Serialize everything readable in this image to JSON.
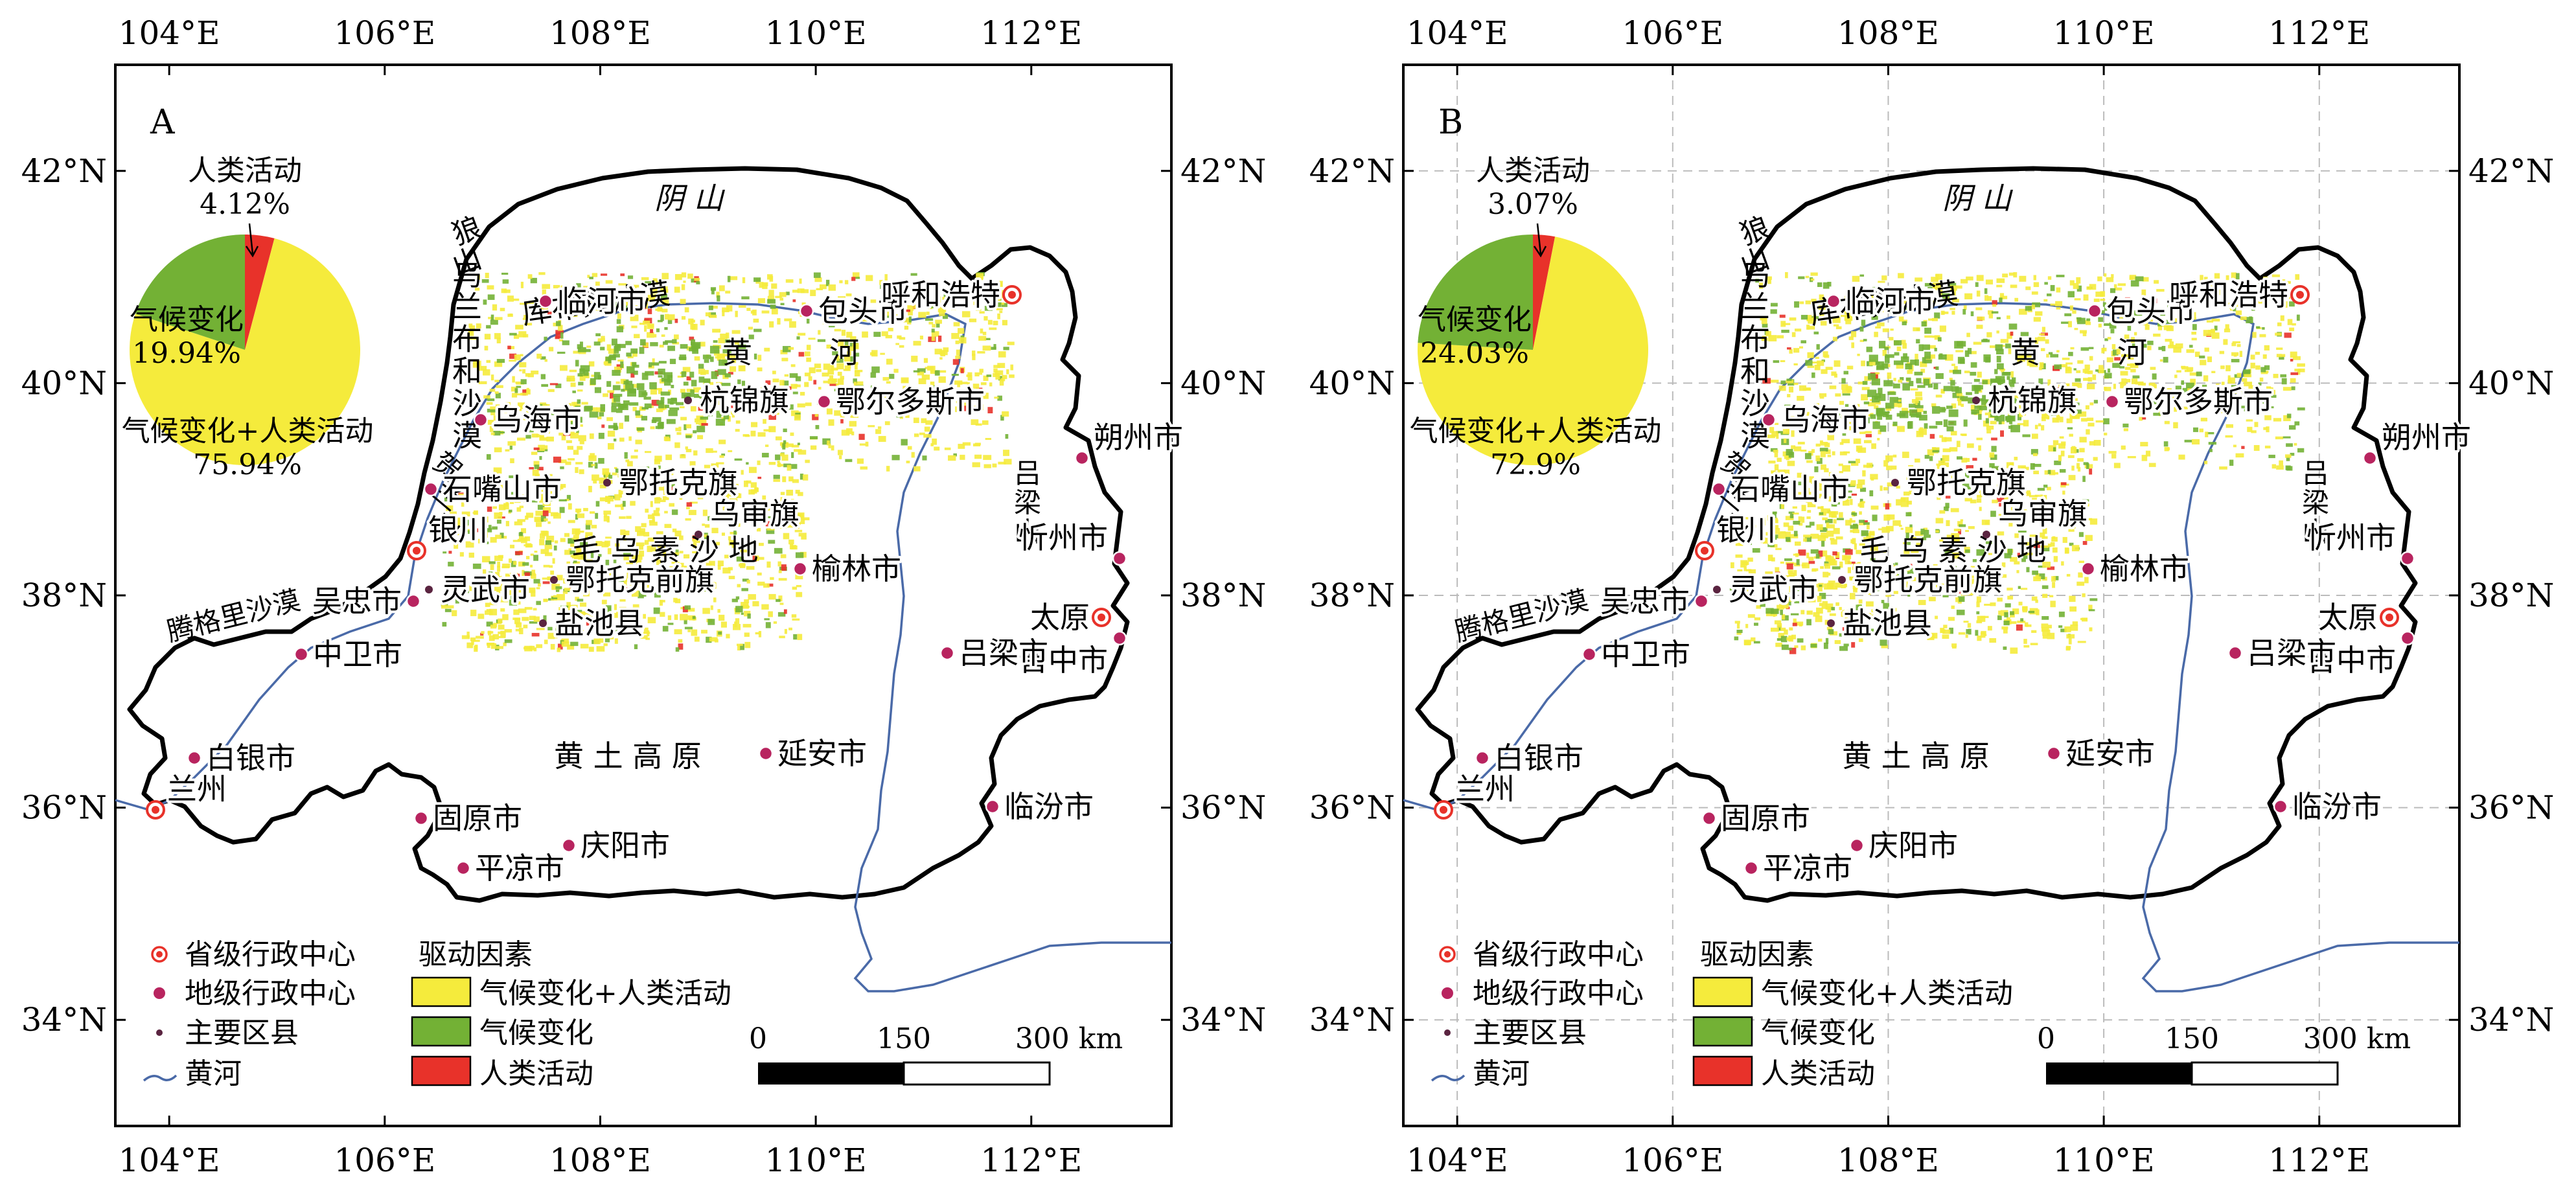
{
  "colors": {
    "combined": "#f5eb3c",
    "climate": "#73b135",
    "human": "#e8322a",
    "river": "#4a6aa8",
    "boundary": "#000000",
    "pref_center": "#b8245f"
  },
  "axis_labels": {
    "lon": [
      "104°E",
      "106°E",
      "108°E",
      "110°E",
      "112°E"
    ],
    "lat": [
      "42°N",
      "40°N",
      "38°N",
      "36°N",
      "34°N"
    ]
  },
  "map_labels": {
    "yinshan": "阴 山",
    "langshan": "狼山",
    "ulanbuh": "乌兰布和沙漠",
    "kubuqi": "库布其沙漠",
    "yellow_river_huang": "黄",
    "yellow_river_he": "河",
    "helan": "贺兰山",
    "mu_us": "毛 乌 素 沙 地",
    "tengger": "腾格里沙漠",
    "loess": "黄 土 高 原",
    "lvliang": "吕梁山"
  },
  "places": [
    {
      "id": "linhe",
      "name": "临河市",
      "type": "prefecture"
    },
    {
      "id": "baotou",
      "name": "包头市",
      "type": "prefecture"
    },
    {
      "id": "hohhot",
      "name": "呼和浩特",
      "type": "provincial"
    },
    {
      "id": "hangjin",
      "name": "杭锦旗",
      "type": "county"
    },
    {
      "id": "ordos",
      "name": "鄂尔多斯市",
      "type": "prefecture"
    },
    {
      "id": "wuhai",
      "name": "乌海市",
      "type": "prefecture"
    },
    {
      "id": "otog",
      "name": "鄂托克旗",
      "type": "county"
    },
    {
      "id": "shizuishan",
      "name": "石嘴山市",
      "type": "prefecture"
    },
    {
      "id": "yinchuan",
      "name": "银川",
      "type": "provincial"
    },
    {
      "id": "wushen",
      "name": "乌审旗",
      "type": "county"
    },
    {
      "id": "yulin",
      "name": "榆林市",
      "type": "prefecture"
    },
    {
      "id": "lingwu",
      "name": "灵武市",
      "type": "county"
    },
    {
      "id": "wuzhong",
      "name": "吴忠市",
      "type": "prefecture"
    },
    {
      "id": "otogqian",
      "name": "鄂托克前旗",
      "type": "county"
    },
    {
      "id": "yanchi",
      "name": "盐池县",
      "type": "county"
    },
    {
      "id": "zhongwei",
      "name": "中卫市",
      "type": "prefecture"
    },
    {
      "id": "shuozhou",
      "name": "朔州市",
      "type": "prefecture"
    },
    {
      "id": "xinzhou",
      "name": "忻州市",
      "type": "prefecture"
    },
    {
      "id": "taiyuan",
      "name": "太原",
      "type": "provincial"
    },
    {
      "id": "jinzhong",
      "name": "晋中市",
      "type": "prefecture"
    },
    {
      "id": "lvliangshi",
      "name": "吕梁市",
      "type": "prefecture"
    },
    {
      "id": "baiyin",
      "name": "白银市",
      "type": "prefecture"
    },
    {
      "id": "lanzhou",
      "name": "兰州",
      "type": "provincial"
    },
    {
      "id": "guyuan",
      "name": "固原市",
      "type": "prefecture"
    },
    {
      "id": "yanan",
      "name": "延安市",
      "type": "prefecture"
    },
    {
      "id": "linfen",
      "name": "临汾市",
      "type": "prefecture"
    },
    {
      "id": "qingyang",
      "name": "庆阳市",
      "type": "prefecture"
    },
    {
      "id": "pingliang",
      "name": "平凉市",
      "type": "prefecture"
    }
  ],
  "legend": {
    "provincial_center": "省级行政中心",
    "prefecture_center": "地级行政中心",
    "major_county": "主要区县",
    "yellow_river": "黄河",
    "drivers_title": "驱动因素",
    "combined": "气候变化+人类活动",
    "climate": "气候变化",
    "human": "人类活动"
  },
  "scalebar": {
    "zero": "0",
    "mid": "150",
    "end": "300 km"
  },
  "panels": [
    {
      "letter": "A",
      "pie": {
        "human_label": "人类活动",
        "human_value": 4.12,
        "human_text": "4.12%",
        "climate_label": "气候变化",
        "climate_value": 19.94,
        "climate_text": "19.94%",
        "combined_label": "气候变化+人类活动",
        "combined_value": 75.94,
        "combined_text": "75.94%"
      }
    },
    {
      "letter": "B",
      "pie": {
        "human_label": "人类活动",
        "human_value": 3.07,
        "human_text": "3.07%",
        "climate_label": "气候变化",
        "climate_value": 24.03,
        "climate_text": "24.03%",
        "combined_label": "气候变化+人类活动",
        "combined_value": 72.9,
        "combined_text": "72.9%"
      }
    }
  ]
}
